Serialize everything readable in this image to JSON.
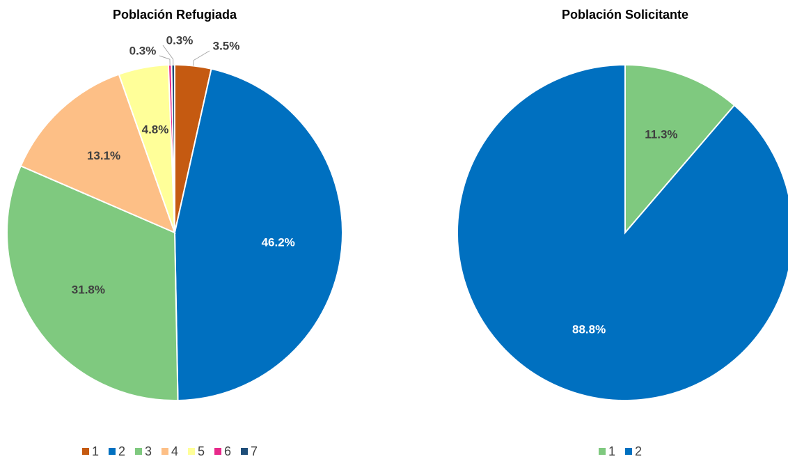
{
  "chart_data": [
    {
      "type": "pie",
      "title": "Población Refugiada",
      "categories": [
        "1",
        "2",
        "3",
        "4",
        "5",
        "6",
        "7"
      ],
      "values": [
        3.5,
        46.2,
        31.8,
        13.1,
        4.8,
        0.3,
        0.3
      ],
      "value_labels": [
        "3.5%",
        "46.2%",
        "31.8%",
        "13.1%",
        "4.8%",
        "0.3%",
        "0.3%"
      ],
      "colors": [
        "#c55a11",
        "#0070c0",
        "#7fc97f",
        "#fdbf86",
        "#ffff99",
        "#e7298a",
        "#1f4e79"
      ],
      "legend": "bottom"
    },
    {
      "type": "pie",
      "title": "Población Solicitante",
      "categories": [
        "1",
        "2"
      ],
      "values": [
        11.3,
        88.8
      ],
      "value_labels": [
        "11.3%",
        "88.8%"
      ],
      "colors": [
        "#7fc97f",
        "#0070c0"
      ],
      "legend": "bottom"
    }
  ]
}
